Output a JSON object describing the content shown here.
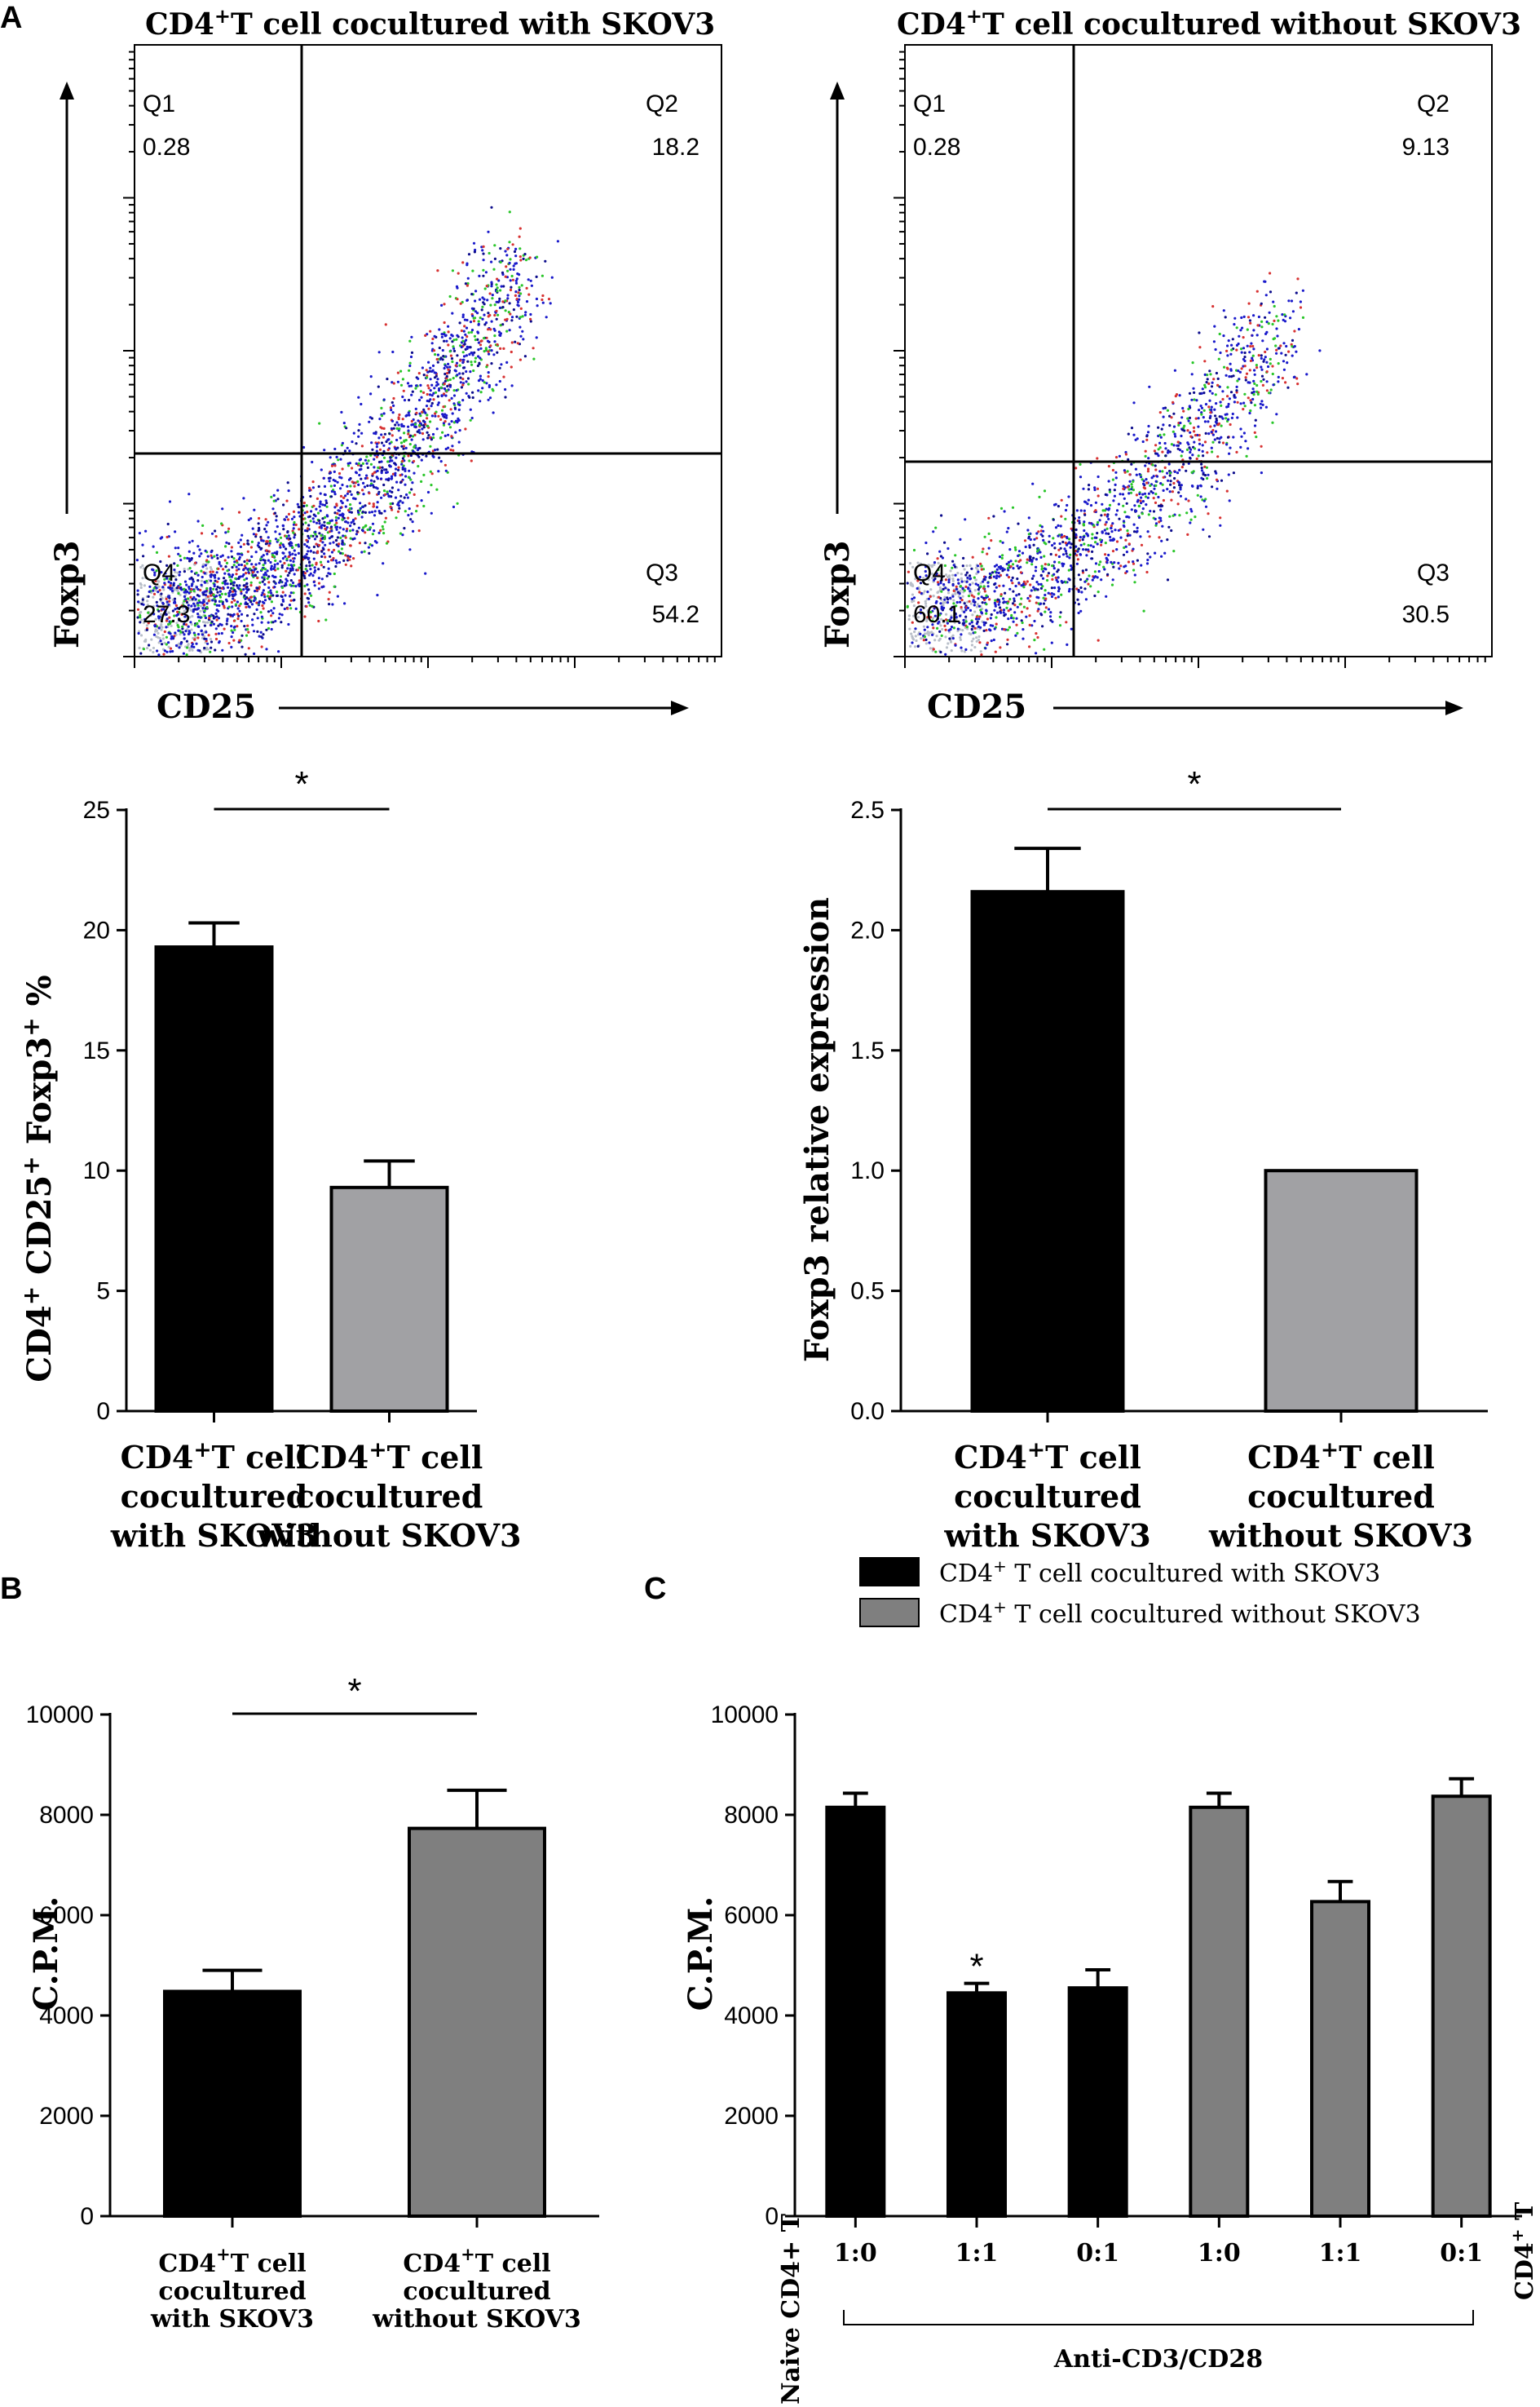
{
  "panels": {
    "a": "A",
    "b": "B",
    "c": "C"
  },
  "flow": {
    "x_label": "CD25",
    "y_label": "Foxp3",
    "plots": [
      {
        "title_pre": "CD4",
        "title_sup": "+",
        "title_post": "T cell  cocultured  with SKOV3",
        "quadrants": {
          "q1": {
            "label": "Q1",
            "value": "0.28"
          },
          "q2": {
            "label": "Q2",
            "value": "18.2"
          },
          "q3": {
            "label": "Q3",
            "value": "54.2"
          },
          "q4": {
            "label": "Q4",
            "value": "27.3"
          }
        }
      },
      {
        "title_pre": "CD4",
        "title_sup": "+",
        "title_post": "T cell  cocultured  without SKOV3",
        "quadrants": {
          "q1": {
            "label": "Q1",
            "value": "0.28"
          },
          "q2": {
            "label": "Q2",
            "value": "9.13"
          },
          "q3": {
            "label": "Q3",
            "value": "30.5"
          },
          "q4": {
            "label": "Q4",
            "value": "60.1"
          }
        }
      }
    ]
  },
  "chart_data": [
    {
      "id": "a_left",
      "type": "bar",
      "ylabel": "CD4+ CD25+ Foxp3+ %",
      "ylim": [
        0,
        25
      ],
      "yticks": [
        "0",
        "5",
        "10",
        "15",
        "20",
        "25"
      ],
      "categories": [
        {
          "line1": "T cell",
          "line2": "cocultured",
          "line3": "with SKOV3"
        },
        {
          "line1": "T cell",
          "line2": "cocultured",
          "line3": "without SKOV3"
        }
      ],
      "cat_prefix": "CD4",
      "cat_sup": "+",
      "values": [
        19.3,
        9.3
      ],
      "errors": [
        1.0,
        1.1
      ],
      "colors": [
        "#000000",
        "#a1a1a4"
      ],
      "significance": "*"
    },
    {
      "id": "a_right",
      "type": "bar",
      "ylabel": "Foxp3 relative expression",
      "ylim": [
        0,
        2.5
      ],
      "yticks": [
        "0.0",
        "0.5",
        "1.0",
        "1.5",
        "2.0",
        "2.5"
      ],
      "categories": [
        {
          "line1": "T cell",
          "line2": "cocultured",
          "line3": "with SKOV3"
        },
        {
          "line1": "T cell",
          "line2": "cocultured",
          "line3": "without SKOV3"
        }
      ],
      "cat_prefix": "CD4",
      "cat_sup": "+",
      "values": [
        2.16,
        1.0
      ],
      "errors": [
        0.18,
        0.0
      ],
      "colors": [
        "#000000",
        "#a1a1a4"
      ],
      "significance": "*"
    },
    {
      "id": "b",
      "type": "bar",
      "ylabel": "C.P.M.",
      "ylim": [
        0,
        10000
      ],
      "yticks": [
        "0",
        "2000",
        "4000",
        "6000",
        "8000",
        "10000"
      ],
      "categories": [
        {
          "line1": "T cell",
          "line2": "cocultured",
          "line3": "with SKOV3"
        },
        {
          "line1": "T cell",
          "line2": "cocultured",
          "line3": "without SKOV3"
        }
      ],
      "cat_prefix": "CD4",
      "cat_sup": "+",
      "values": [
        4480,
        7730
      ],
      "errors": [
        420,
        760
      ],
      "colors": [
        "#000000",
        "#7f7f7f"
      ],
      "significance": "*"
    },
    {
      "id": "c",
      "type": "bar",
      "ylabel": "C.P.M.",
      "ylim": [
        0,
        10000
      ],
      "yticks": [
        "0",
        "2000",
        "4000",
        "6000",
        "8000",
        "10000"
      ],
      "categories": [
        "1:0",
        "1:1",
        "0:1",
        "1:0",
        "1:1",
        "0:1"
      ],
      "values": [
        8150,
        4450,
        4550,
        8150,
        6270,
        8370
      ],
      "errors": [
        280,
        190,
        360,
        280,
        400,
        350
      ],
      "series_index": [
        0,
        0,
        0,
        1,
        1,
        1
      ],
      "series": [
        {
          "name_pre": "CD4",
          "name_sup": "+",
          "name_post": " T cell cocultured with SKOV3",
          "color": "#000000"
        },
        {
          "name_pre": "CD4",
          "name_sup": "+",
          "name_post": " T cell cocultured without SKOV3",
          "color": "#7f7f7f"
        }
      ],
      "significance": "*",
      "left_label": "Naive CD4+ T",
      "right_label_pre": "CD4",
      "right_label_sup": "+",
      "right_label_post": " T",
      "bracket_label": "Anti-CD3/CD28"
    }
  ]
}
